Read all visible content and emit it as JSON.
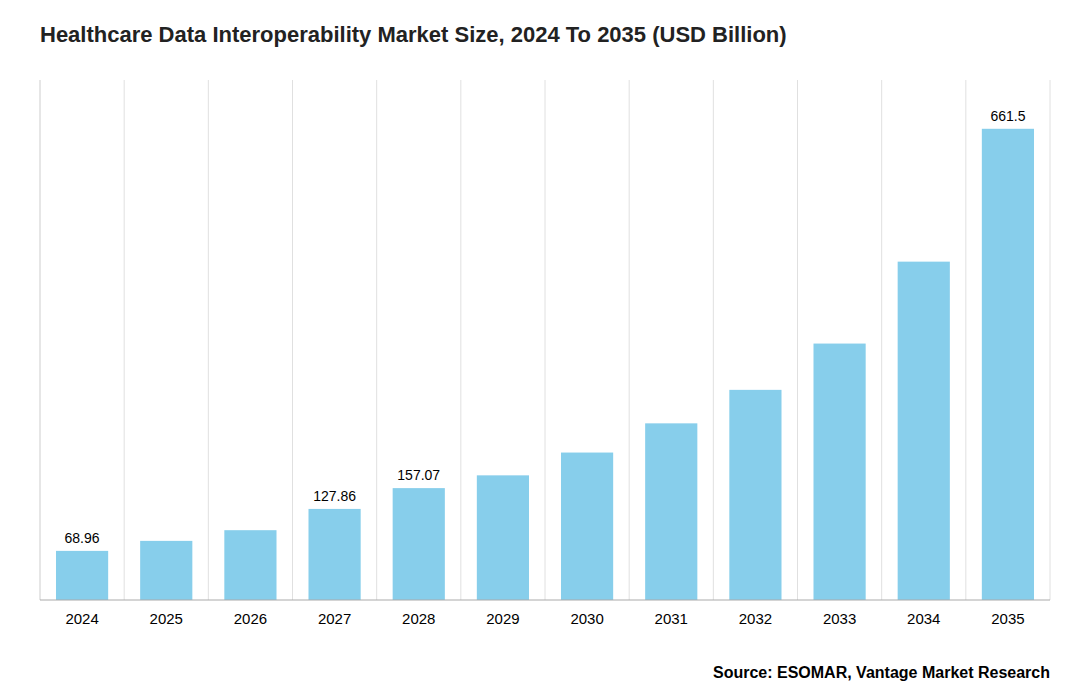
{
  "chart_data": {
    "type": "bar",
    "title": "Healthcare Data Interoperability Market Size, 2024 To 2035 (USD Billion)",
    "categories": [
      "2024",
      "2025",
      "2026",
      "2027",
      "2028",
      "2029",
      "2030",
      "2031",
      "2032",
      "2033",
      "2034",
      "2035"
    ],
    "values": [
      68.96,
      83.0,
      98.0,
      127.86,
      157.07,
      175.0,
      207.0,
      248.0,
      295.0,
      360.0,
      475.0,
      661.5
    ],
    "value_labels": [
      "68.96",
      null,
      null,
      "127.86",
      "157.07",
      null,
      null,
      null,
      null,
      null,
      null,
      "661.5"
    ],
    "color": "#87CEEB",
    "ylim": [
      0,
      730
    ],
    "grid": true,
    "tick_labels": "x",
    "source": "Source: ESOMAR, Vantage Market Research"
  }
}
